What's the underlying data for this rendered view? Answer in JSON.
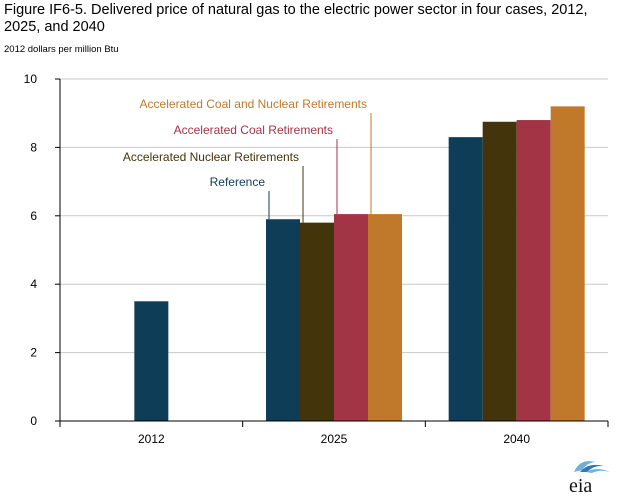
{
  "title": "Figure IF6-5. Delivered price of natural gas to the electric power sector in four cases, 2012, 2025, and 2040",
  "units": "2012 dollars per million Btu",
  "logo_text": "eia",
  "colors": {
    "Reference": "#0e3d58",
    "Accelerated Nuclear Retirements": "#44340c",
    "Accelerated Coal Retirements": "#a33445",
    "Accelerated Coal and Nuclear Retirements": "#c0792a",
    "grid": "#c8c8c8",
    "axis": "#000000"
  },
  "chart_data": {
    "type": "bar",
    "categories": [
      "2012",
      "2025",
      "2040"
    ],
    "series": [
      {
        "name": "Reference",
        "values": [
          3.5,
          5.9,
          8.3
        ]
      },
      {
        "name": "Accelerated Nuclear Retirements",
        "values": [
          null,
          5.8,
          8.75
        ]
      },
      {
        "name": "Accelerated Coal Retirements",
        "values": [
          null,
          6.05,
          8.8
        ]
      },
      {
        "name": "Accelerated Coal and Nuclear Retirements",
        "values": [
          null,
          6.05,
          9.2
        ]
      }
    ],
    "ylim": [
      0,
      10
    ],
    "yticks": [
      0,
      2,
      4,
      6,
      8,
      10
    ],
    "xlabel": "",
    "ylabel": "",
    "grid": true,
    "annotations": [
      {
        "text": "Reference",
        "series": "Reference",
        "category": "2025"
      },
      {
        "text": "Accelerated Nuclear Retirements",
        "series": "Accelerated Nuclear Retirements",
        "category": "2025"
      },
      {
        "text": "Accelerated Coal Retirements",
        "series": "Accelerated Coal Retirements",
        "category": "2025"
      },
      {
        "text": "Accelerated Coal and Nuclear Retirements",
        "series": "Accelerated Coal and Nuclear Retirements",
        "category": "2025"
      }
    ]
  }
}
